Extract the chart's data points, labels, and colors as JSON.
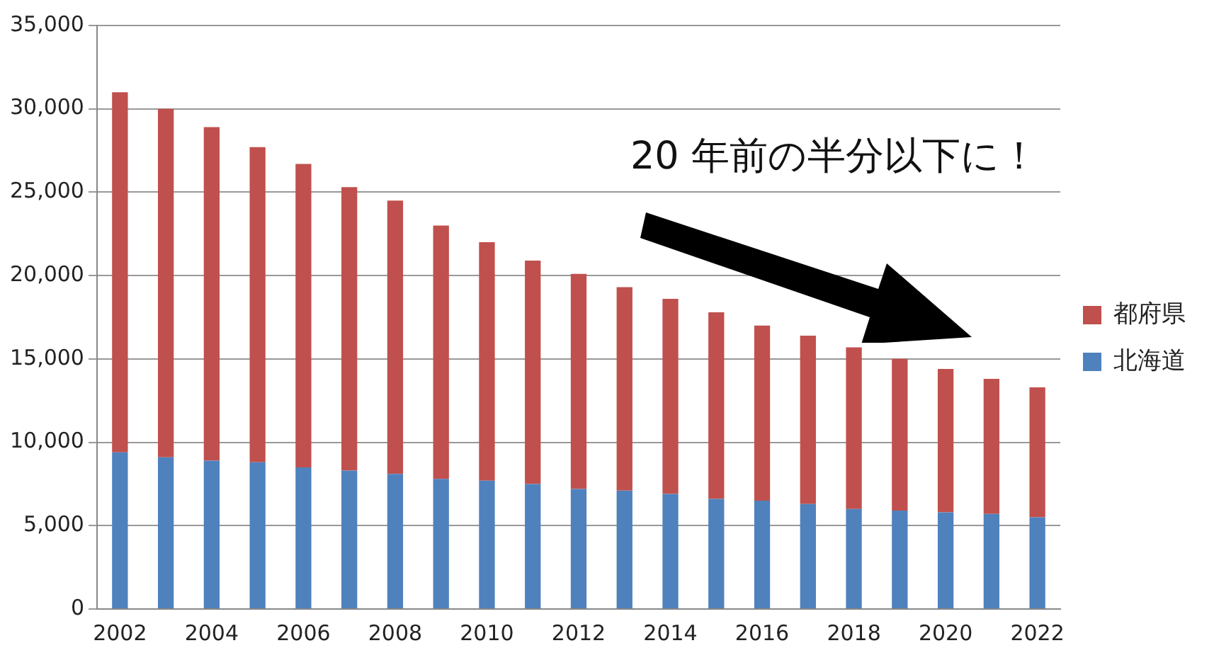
{
  "chart_data": {
    "type": "bar",
    "stacked": true,
    "categories": [
      "2002",
      null,
      "2004",
      null,
      "2006",
      null,
      "2008",
      null,
      "2010",
      null,
      "2012",
      null,
      "2014",
      null,
      "2016",
      null,
      "2018",
      null,
      "2020",
      null,
      "2022"
    ],
    "series": [
      {
        "name": "北海道",
        "color": "#4f81bd",
        "values": [
          9400,
          9100,
          8900,
          8800,
          8500,
          8300,
          8100,
          7800,
          7700,
          7500,
          7200,
          7100,
          6900,
          6600,
          6500,
          6300,
          6000,
          5900,
          5800,
          5700,
          5500
        ]
      },
      {
        "name": "都府県",
        "color": "#c0504d",
        "values": [
          21600,
          20900,
          20000,
          18900,
          18200,
          17000,
          16400,
          15200,
          14300,
          13400,
          12900,
          12200,
          11700,
          11200,
          10500,
          10100,
          9700,
          9100,
          8600,
          8100,
          7800
        ]
      }
    ],
    "ylim": [
      0,
      35000
    ],
    "yticks": [
      {
        "value": 0,
        "label": "0"
      },
      {
        "value": 5000,
        "label": "5,000"
      },
      {
        "value": 10000,
        "label": "10,000"
      },
      {
        "value": 15000,
        "label": "15,000"
      },
      {
        "value": 20000,
        "label": "20,000"
      },
      {
        "value": 25000,
        "label": "25,000"
      },
      {
        "value": 30000,
        "label": "30,000"
      },
      {
        "value": 35000,
        "label": "35,000"
      }
    ],
    "grid": "y",
    "legend": "right",
    "annotations": [
      "20 年前の半分以下に！"
    ]
  }
}
